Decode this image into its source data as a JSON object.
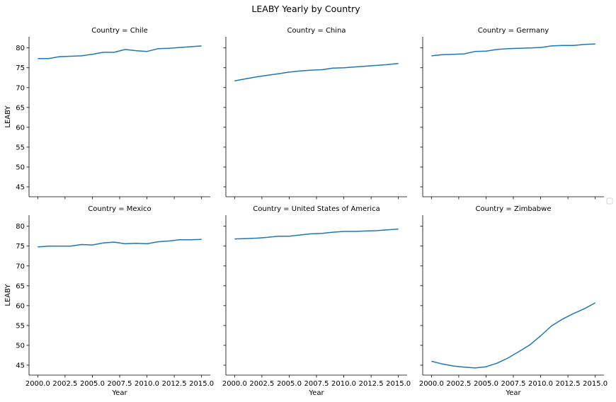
{
  "title": "LEABY Yearly by Country",
  "x_tick_labels": [
    "2000.0",
    "2002.5",
    "2005.0",
    "2007.5",
    "2010.0",
    "2012.5",
    "2015.0"
  ],
  "y_tick_labels": [
    "45",
    "50",
    "55",
    "60",
    "65",
    "70",
    "75",
    "80"
  ],
  "line_color": "#1f77b4",
  "chart_data": {
    "type": "line",
    "title": "LEABY Yearly by Country",
    "xlabel": "Year",
    "ylabel": "LEABY",
    "xlim": [
      1999.2,
      2015.8
    ],
    "ylim": [
      42.5,
      82.8
    ],
    "x_ticks": [
      2000.0,
      2002.5,
      2005.0,
      2007.5,
      2010.0,
      2012.5,
      2015.0
    ],
    "y_ticks": [
      45,
      50,
      55,
      60,
      65,
      70,
      75,
      80
    ],
    "shared_axes": true,
    "grid": false,
    "legend": "right (empty)",
    "x": [
      2000,
      2001,
      2002,
      2003,
      2004,
      2005,
      2006,
      2007,
      2008,
      2009,
      2010,
      2011,
      2012,
      2013,
      2014,
      2015
    ],
    "facets": [
      {
        "title": "Country = Chile",
        "values": [
          77.3,
          77.3,
          77.8,
          77.9,
          78.0,
          78.4,
          78.9,
          78.9,
          79.6,
          79.3,
          79.1,
          79.8,
          79.9,
          80.1,
          80.3,
          80.5
        ]
      },
      {
        "title": "Country = China",
        "values": [
          71.7,
          72.2,
          72.7,
          73.1,
          73.5,
          73.9,
          74.2,
          74.4,
          74.5,
          74.9,
          75.0,
          75.2,
          75.4,
          75.6,
          75.8,
          76.1
        ]
      },
      {
        "title": "Country = Germany",
        "values": [
          78.0,
          78.3,
          78.4,
          78.5,
          79.1,
          79.2,
          79.6,
          79.8,
          79.9,
          80.0,
          80.1,
          80.5,
          80.6,
          80.6,
          80.9,
          81.0
        ]
      },
      {
        "title": "Country = Mexico",
        "values": [
          74.8,
          75.0,
          75.0,
          75.0,
          75.4,
          75.3,
          75.8,
          76.0,
          75.6,
          75.7,
          75.6,
          76.1,
          76.3,
          76.6,
          76.6,
          76.7
        ]
      },
      {
        "title": "Country = United States of America",
        "values": [
          76.8,
          76.9,
          77.0,
          77.2,
          77.5,
          77.5,
          77.8,
          78.1,
          78.2,
          78.5,
          78.7,
          78.7,
          78.8,
          78.9,
          79.1,
          79.3
        ]
      },
      {
        "title": "Country = Zimbabwe",
        "values": [
          46.0,
          45.3,
          44.8,
          44.5,
          44.3,
          44.6,
          45.5,
          46.8,
          48.4,
          50.1,
          52.4,
          54.9,
          56.6,
          58.0,
          59.2,
          60.7
        ]
      }
    ]
  }
}
